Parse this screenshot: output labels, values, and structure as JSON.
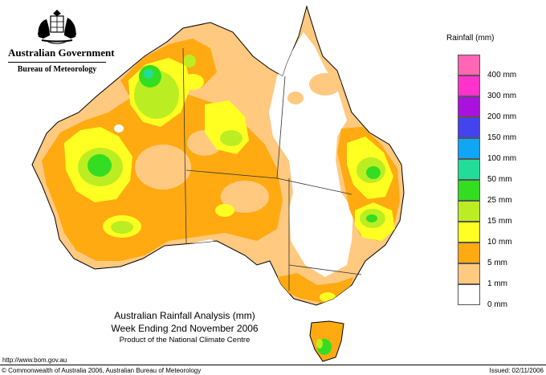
{
  "header": {
    "gov_name": "Australian Government",
    "agency": "Bureau of Meteorology"
  },
  "legend": {
    "title": "Rainfall (mm)",
    "items": [
      {
        "label": "400 mm",
        "color": "#ff66b3"
      },
      {
        "label": "300 mm",
        "color": "#ff33cc"
      },
      {
        "label": "200 mm",
        "color": "#aa11dd"
      },
      {
        "label": "150 mm",
        "color": "#4444ee"
      },
      {
        "label": "100 mm",
        "color": "#11a5f5"
      },
      {
        "label": "50 mm",
        "color": "#22dd99"
      },
      {
        "label": "25 mm",
        "color": "#33dd22"
      },
      {
        "label": "15 mm",
        "color": "#bbee22"
      },
      {
        "label": "10 mm",
        "color": "#ffff22"
      },
      {
        "label": "5 mm",
        "color": "#ffaa11"
      },
      {
        "label": "1 mm",
        "color": "#ffc980"
      },
      {
        "label": "0 mm",
        "color": "#ffffff"
      }
    ]
  },
  "title": {
    "line1": "Australian Rainfall Analysis (mm)",
    "line2": "Week Ending 2nd November 2006",
    "line3": "Product of the National Climate Centre"
  },
  "footer": {
    "url": "http://www.bom.gov.au",
    "copyright": "© Commonwealth of Australia 2006, Australian Bureau of Meteorology",
    "issued": "Issued: 02/11/2006"
  }
}
